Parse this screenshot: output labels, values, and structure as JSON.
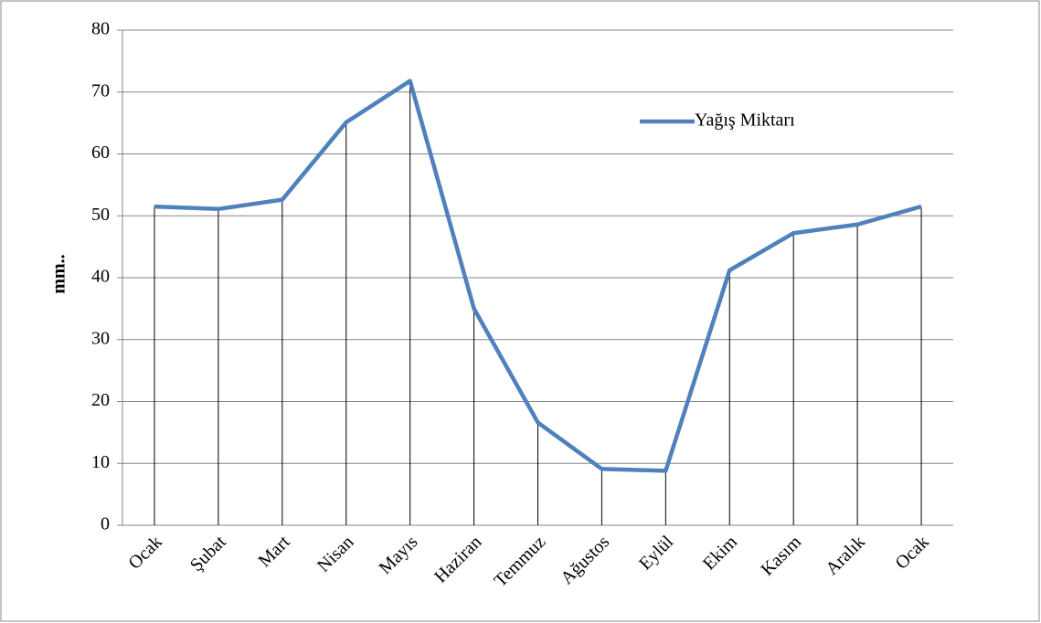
{
  "chart_data": {
    "type": "line",
    "ylabel": "mm..",
    "categories": [
      "Ocak",
      "Şubat",
      "Mart",
      "Nisan",
      "Mayıs",
      "Haziran",
      "Temmuz",
      "Ağustos",
      "Eylül",
      "Ekim",
      "Kasım",
      "Aralık",
      "Ocak"
    ],
    "series": [
      {
        "name": "Yağış Miktarı",
        "color": "#4f81bd",
        "values": [
          51.5,
          51.1,
          52.6,
          65.1,
          71.8,
          35.0,
          16.6,
          9.1,
          8.8,
          41.2,
          47.2,
          48.6,
          51.5
        ]
      }
    ],
    "ylim": [
      0,
      80
    ],
    "yticks": [
      0,
      10,
      20,
      30,
      40,
      50,
      60,
      70,
      80
    ],
    "grid": true,
    "drop_lines": true,
    "legend": "top-right"
  }
}
